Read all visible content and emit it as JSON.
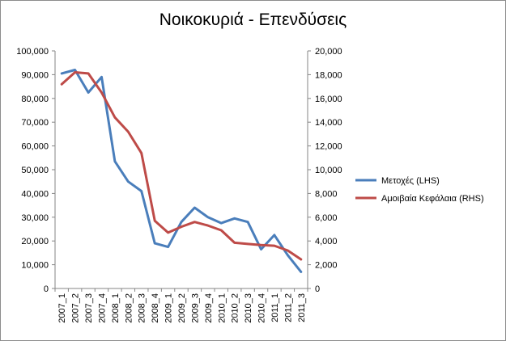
{
  "chart_data": {
    "type": "line",
    "title": "Νοικοκυριά - Επενδύσεις",
    "categories": [
      "2007_1",
      "2007_2",
      "2007_3",
      "2007_4",
      "2008_1",
      "2008_2",
      "2008_3",
      "2008_4",
      "2009_1",
      "2009_2",
      "2009_3",
      "2009_4",
      "2010_1",
      "2010_2",
      "2010_3",
      "2010_4",
      "2011_1",
      "2011_2",
      "2011_3"
    ],
    "y_left": {
      "min": 0,
      "max": 100000,
      "step": 10000,
      "ticks": [
        "0",
        "10,000",
        "20,000",
        "30,000",
        "40,000",
        "50,000",
        "60,000",
        "70,000",
        "80,000",
        "90,000",
        "100,000"
      ]
    },
    "y_right": {
      "min": 0,
      "max": 20000,
      "step": 2000,
      "ticks": [
        "0",
        "2,000",
        "4,000",
        "6,000",
        "8,000",
        "10,000",
        "12,000",
        "14,000",
        "16,000",
        "18,000",
        "20,000"
      ]
    },
    "series": [
      {
        "name": "Μετοχές (LHS)",
        "axis": "left",
        "color": "#4a7ebb",
        "values": [
          90500,
          92000,
          82500,
          89000,
          53500,
          45000,
          41000,
          19000,
          17500,
          28000,
          34000,
          30000,
          27500,
          29500,
          28000,
          16500,
          22500,
          14000,
          7000
        ]
      },
      {
        "name": "Αμοιβαία Κεφάλαια (RHS)",
        "axis": "right",
        "color": "#be4b48",
        "values": [
          17200,
          18200,
          18100,
          16500,
          14400,
          13200,
          11400,
          5700,
          4700,
          5200,
          5600,
          5300,
          4900,
          3850,
          3750,
          3650,
          3600,
          3200,
          2450
        ]
      }
    ],
    "grid": false,
    "legend_position": "right"
  }
}
